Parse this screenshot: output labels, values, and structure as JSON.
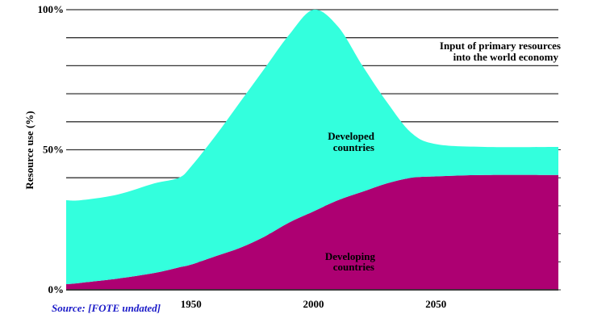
{
  "chart_data": {
    "type": "area",
    "stacked": true,
    "title": "Input of primary resources into the world economy",
    "title_lines": [
      "Input of primary resources",
      "into the world economy"
    ],
    "xlabel": "",
    "ylabel": "Resource use (%)",
    "xlim": [
      1899,
      2100
    ],
    "ylim": [
      0,
      100
    ],
    "x_ticks": [
      1950,
      2000,
      2050
    ],
    "x_tick_labels": [
      "1950",
      "2000",
      "2050"
    ],
    "y_ticks": [
      0,
      50,
      100
    ],
    "y_tick_labels": [
      "0%",
      "50%",
      "100%"
    ],
    "grid": true,
    "grid_step": 10,
    "x": [
      1899,
      1905,
      1920,
      1935,
      1945,
      1950,
      1960,
      1970,
      1980,
      1990,
      2000,
      2010,
      2020,
      2030,
      2040,
      2050,
      2070,
      2100
    ],
    "series": [
      {
        "name": "Developing countries",
        "label_lines": [
          "Developing",
          "countries"
        ],
        "color": "#ad0072",
        "values": [
          2,
          2.5,
          4,
          6,
          8,
          9,
          12,
          15,
          19,
          24,
          28,
          32,
          35,
          38,
          40,
          40.5,
          41,
          41
        ]
      },
      {
        "name": "Developed countries",
        "label_lines": [
          "Developed",
          "countries"
        ],
        "color": "#33ffdd",
        "values": [
          30,
          29.5,
          30,
          32,
          32,
          35,
          43,
          52,
          60,
          67,
          72,
          62,
          45,
          29,
          16,
          11.5,
          10,
          10
        ]
      }
    ],
    "totals": [
      32,
      32,
      34,
      38,
      40,
      44,
      55,
      67,
      79,
      91,
      100,
      94,
      80,
      67,
      56,
      52,
      51,
      51
    ],
    "source": "Source: [FOTE undated]"
  }
}
